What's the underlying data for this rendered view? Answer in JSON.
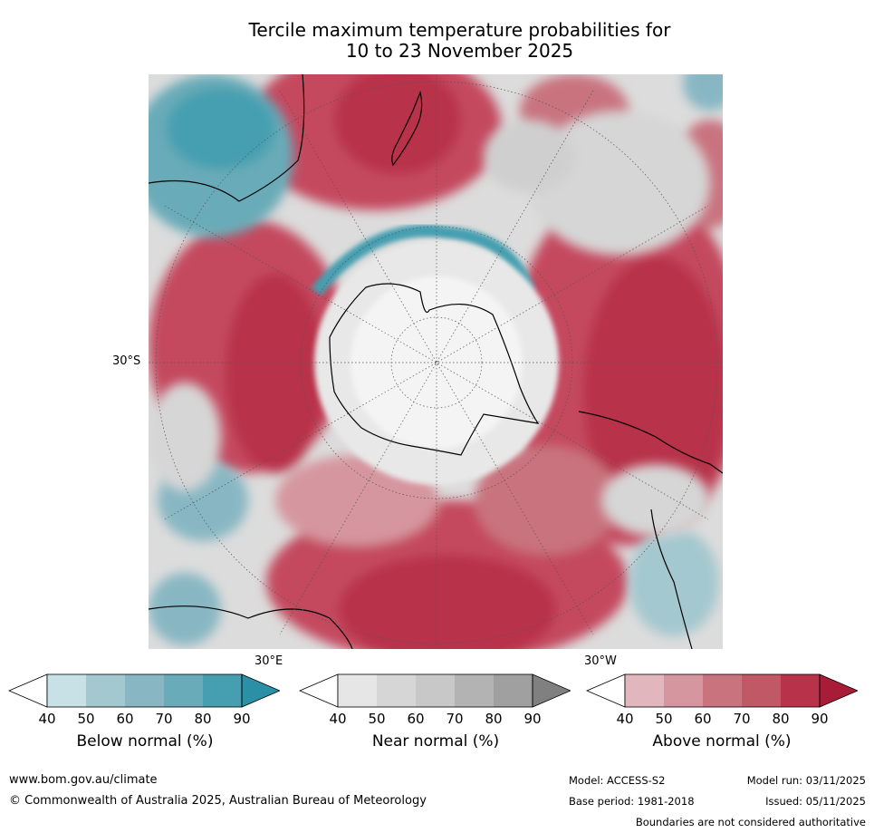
{
  "title_line1": "Tercile maximum temperature probabilities for",
  "title_line2": "10 to 23 November 2025",
  "map": {
    "lat_label": "30°S",
    "lon_label_east": "30°E",
    "lon_label_west": "30°W",
    "colors": {
      "below": [
        "#ffffff",
        "#c8e1e7",
        "#a4c8cf",
        "#88b7c3",
        "#69abb8",
        "#459fb0",
        "#2b8fa6"
      ],
      "near": [
        "#ffffff",
        "#e6e6e6",
        "#d6d6d6",
        "#c8c8c8",
        "#b3b3b3",
        "#a0a0a0",
        "#808080"
      ],
      "above": [
        "#ffffff",
        "#e2b6bd",
        "#d6969f",
        "#c9737f",
        "#c15866",
        "#b8324a",
        "#a81c38"
      ]
    }
  },
  "colorbars": [
    {
      "key": "below",
      "title": "Below normal (%)",
      "ticks": [
        "40",
        "50",
        "60",
        "70",
        "80",
        "90"
      ]
    },
    {
      "key": "near",
      "title": "Near normal (%)",
      "ticks": [
        "40",
        "50",
        "60",
        "70",
        "80",
        "90"
      ]
    },
    {
      "key": "above",
      "title": "Above normal (%)",
      "ticks": [
        "40",
        "50",
        "60",
        "70",
        "80",
        "90"
      ]
    }
  ],
  "footer": {
    "website": "www.bom.gov.au/climate",
    "copyright": "© Commonwealth of Australia 2025, Australian Bureau of Meteorology",
    "model": "Model: ACCESS-S2",
    "base_period": "Base period: 1981-2018",
    "model_run": "Model run: 03/11/2025",
    "issued": "Issued: 05/11/2025",
    "disclaimer": "Boundaries are not considered authoritative"
  }
}
